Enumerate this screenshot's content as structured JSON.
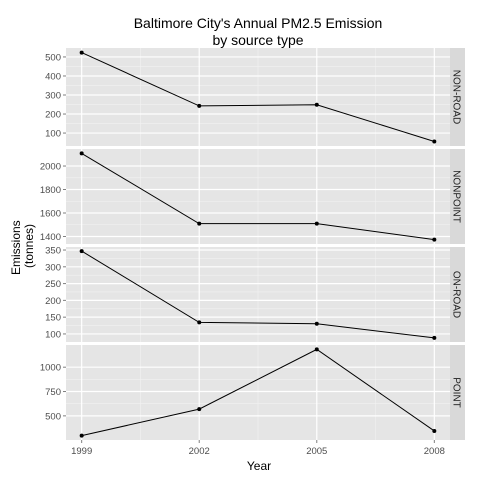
{
  "chart_data": {
    "type": "line",
    "title": "Baltimore City's Annual PM2.5 Emission",
    "subtitle": "by source type",
    "xlabel": "Year",
    "ylabel": [
      "Emissions",
      "(tonnes)"
    ],
    "x": [
      1999,
      2002,
      2005,
      2008
    ],
    "x_tick_labels": [
      "1999",
      "2002",
      "2005",
      "2008"
    ],
    "xlim": [
      1998.6,
      2008.4
    ],
    "grid": true,
    "facet_background": "#e5e5e5",
    "strip_background": "#d9d9d9",
    "line_color": "#000000",
    "facets": [
      {
        "name": "NON-ROAD",
        "values": [
          522.9,
          242.7,
          248.9,
          55.8
        ],
        "ylim": [
          32,
          547
        ],
        "y_ticks": [
          100,
          200,
          300,
          400,
          500
        ],
        "y_tick_labels": [
          "100",
          "200",
          "300",
          "400",
          "500"
        ]
      },
      {
        "name": "NONPOINT",
        "values": [
          2107.6,
          1509.5,
          1509.5,
          1373.2
        ],
        "ylim": [
          1336,
          2145
        ],
        "y_ticks": [
          1400,
          1600,
          1800,
          2000
        ],
        "y_tick_labels": [
          "1400",
          "1600",
          "1800",
          "2000"
        ]
      },
      {
        "name": "ON-ROAD",
        "values": [
          346.8,
          134.3,
          130.4,
          88.3
        ],
        "ylim": [
          76,
          359
        ],
        "y_ticks": [
          100,
          150,
          200,
          250,
          300,
          350
        ],
        "y_tick_labels": [
          "100",
          "150",
          "200",
          "250",
          "300",
          "350"
        ]
      },
      {
        "name": "POINT",
        "values": [
          296.8,
          569.3,
          1183.0,
          344.9
        ],
        "ylim": [
          252,
          1228
        ],
        "y_ticks": [
          500,
          750,
          1000
        ],
        "y_tick_labels": [
          "500",
          "750",
          "1000"
        ]
      }
    ]
  }
}
